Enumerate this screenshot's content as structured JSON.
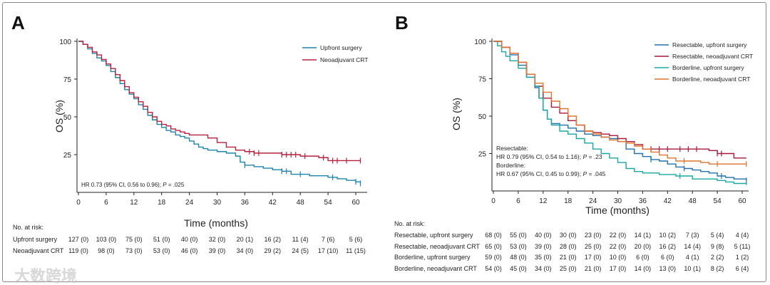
{
  "chart_data": [
    {
      "panel": "A",
      "type": "line",
      "subtype": "kaplan-meier",
      "xlabel": "Time (months)",
      "ylabel": "OS (%)",
      "xlim": [
        0,
        62
      ],
      "ylim": [
        0,
        100
      ],
      "xticks": [
        0,
        6,
        12,
        18,
        24,
        30,
        36,
        42,
        48,
        54,
        60
      ],
      "yticks": [
        25,
        50,
        75,
        100
      ],
      "legend_position": "top-right",
      "annotation": {
        "pre": "HR 0.73 (95% CI, 0.56 to 0.96); ",
        "p": "P",
        "post": " = .025"
      },
      "series": [
        {
          "name": "Upfront surgery",
          "color": "#1f82aa",
          "points": [
            [
              0,
              100
            ],
            [
              1,
              98
            ],
            [
              2,
              95
            ],
            [
              3,
              92
            ],
            [
              4,
              89
            ],
            [
              5,
              87
            ],
            [
              6,
              84
            ],
            [
              7,
              80
            ],
            [
              8,
              76
            ],
            [
              9,
              72
            ],
            [
              10,
              68
            ],
            [
              11,
              65
            ],
            [
              12,
              62
            ],
            [
              13,
              58
            ],
            [
              14,
              55
            ],
            [
              15,
              51
            ],
            [
              16,
              48
            ],
            [
              17,
              45
            ],
            [
              18,
              43
            ],
            [
              19,
              41
            ],
            [
              20,
              40
            ],
            [
              21,
              38
            ],
            [
              22,
              37
            ],
            [
              23,
              36
            ],
            [
              24,
              34
            ],
            [
              25,
              32
            ],
            [
              26,
              30
            ],
            [
              27,
              29
            ],
            [
              28,
              28
            ],
            [
              30,
              27
            ],
            [
              32,
              26
            ],
            [
              34,
              24
            ],
            [
              35,
              20
            ],
            [
              36,
              18
            ],
            [
              38,
              17
            ],
            [
              40,
              16
            ],
            [
              42,
              15
            ],
            [
              44,
              14
            ],
            [
              46,
              12
            ],
            [
              48,
              12
            ],
            [
              50,
              11
            ],
            [
              52,
              11
            ],
            [
              54,
              10
            ],
            [
              56,
              9
            ],
            [
              58,
              8
            ],
            [
              60,
              7
            ],
            [
              61,
              6
            ]
          ],
          "censored": [
            36,
            44,
            45,
            48,
            55,
            60,
            61
          ]
        },
        {
          "name": "Neoadjuvant CRT",
          "color": "#b5213e",
          "points": [
            [
              0,
              100
            ],
            [
              1,
              98
            ],
            [
              2,
              96
            ],
            [
              3,
              93
            ],
            [
              4,
              91
            ],
            [
              5,
              88
            ],
            [
              6,
              85
            ],
            [
              7,
              82
            ],
            [
              8,
              78
            ],
            [
              9,
              74
            ],
            [
              10,
              70
            ],
            [
              11,
              66
            ],
            [
              12,
              63
            ],
            [
              13,
              60
            ],
            [
              14,
              57
            ],
            [
              15,
              53
            ],
            [
              16,
              50
            ],
            [
              17,
              47
            ],
            [
              18,
              45
            ],
            [
              19,
              44
            ],
            [
              20,
              42
            ],
            [
              21,
              41
            ],
            [
              22,
              40
            ],
            [
              23,
              39
            ],
            [
              24,
              38
            ],
            [
              26,
              38
            ],
            [
              28,
              36
            ],
            [
              30,
              33
            ],
            [
              32,
              30
            ],
            [
              34,
              28
            ],
            [
              36,
              27
            ],
            [
              38,
              26
            ],
            [
              40,
              26
            ],
            [
              42,
              26
            ],
            [
              44,
              25
            ],
            [
              46,
              25
            ],
            [
              48,
              24
            ],
            [
              50,
              24
            ],
            [
              52,
              23
            ],
            [
              54,
              21
            ],
            [
              61,
              21
            ]
          ],
          "censored": [
            37,
            38,
            39,
            44,
            45,
            46,
            47,
            49,
            53,
            55,
            56,
            58,
            61
          ]
        }
      ],
      "at_risk": {
        "title": "No. at risk:",
        "rows": [
          {
            "label": "Upfront surgery",
            "values": [
              "127 (0)",
              "103 (0)",
              "75 (0)",
              "51 (0)",
              "40 (0)",
              "32 (0)",
              "20 (1)",
              "16 (2)",
              "11 (4)",
              "7 (6)",
              "5 (6)"
            ]
          },
          {
            "label": "Neoadjuvant CRT",
            "values": [
              "119 (0)",
              "98 (0)",
              "73 (0)",
              "53 (0)",
              "46 (0)",
              "39 (0)",
              "34 (0)",
              "29 (2)",
              "24 (5)",
              "17 (10)",
              "11 (15)"
            ]
          }
        ]
      }
    },
    {
      "panel": "B",
      "type": "line",
      "subtype": "kaplan-meier",
      "xlabel": "Time (months)",
      "ylabel": "OS (%)",
      "xlim": [
        0,
        62
      ],
      "ylim": [
        0,
        100
      ],
      "xticks": [
        0,
        6,
        12,
        18,
        24,
        30,
        36,
        42,
        48,
        54,
        60
      ],
      "yticks": [
        25,
        50,
        75,
        100
      ],
      "legend_position": "top-right",
      "annotation_lines": [
        {
          "pre": "Resectable:",
          "p": "",
          "post": ""
        },
        {
          "pre": "HR 0.79 (95% CI, 0.54 to 1.16); ",
          "p": "P",
          "post": " = .23"
        },
        {
          "pre": "Borderline:",
          "p": "",
          "post": ""
        },
        {
          "pre": "HR 0.67 (95% CI, 0.45 to 0.99); ",
          "p": "P",
          "post": " = .045"
        }
      ],
      "series": [
        {
          "name": "Resectable, upfront surgery",
          "color": "#2271ad",
          "points": [
            [
              0,
              100
            ],
            [
              2,
              96
            ],
            [
              4,
              91
            ],
            [
              6,
              84
            ],
            [
              8,
              76
            ],
            [
              10,
              69
            ],
            [
              11,
              62
            ],
            [
              12,
              54
            ],
            [
              13,
              48
            ],
            [
              14,
              45
            ],
            [
              16,
              44
            ],
            [
              18,
              42
            ],
            [
              20,
              40
            ],
            [
              22,
              38
            ],
            [
              24,
              37
            ],
            [
              26,
              36
            ],
            [
              28,
              35
            ],
            [
              30,
              33
            ],
            [
              32,
              28
            ],
            [
              34,
              25
            ],
            [
              36,
              23
            ],
            [
              38,
              21
            ],
            [
              40,
              20
            ],
            [
              42,
              18
            ],
            [
              44,
              16
            ],
            [
              46,
              15
            ],
            [
              48,
              14
            ],
            [
              50,
              13
            ],
            [
              52,
              12
            ],
            [
              54,
              10
            ],
            [
              56,
              9
            ],
            [
              58,
              8
            ],
            [
              61,
              7
            ]
          ],
          "censored": [
            38,
            46,
            55,
            61
          ]
        },
        {
          "name": "Resectable, neoadjuvant CRT",
          "color": "#a8193a",
          "points": [
            [
              0,
              100
            ],
            [
              2,
              96
            ],
            [
              4,
              92
            ],
            [
              6,
              86
            ],
            [
              8,
              78
            ],
            [
              10,
              70
            ],
            [
              12,
              62
            ],
            [
              14,
              56
            ],
            [
              16,
              52
            ],
            [
              18,
              47
            ],
            [
              20,
              44
            ],
            [
              22,
              40
            ],
            [
              24,
              39
            ],
            [
              26,
              38
            ],
            [
              28,
              37
            ],
            [
              30,
              35
            ],
            [
              32,
              33
            ],
            [
              34,
              31
            ],
            [
              36,
              28
            ],
            [
              40,
              28
            ],
            [
              44,
              28
            ],
            [
              48,
              28
            ],
            [
              52,
              27
            ],
            [
              54,
              25
            ],
            [
              56,
              25
            ],
            [
              58,
              22
            ],
            [
              61,
              22
            ]
          ],
          "censored": [
            38,
            40,
            42,
            45,
            47,
            49,
            54,
            55
          ]
        },
        {
          "name": "Borderline, upfront surgery",
          "color": "#1aa8a2",
          "points": [
            [
              0,
              100
            ],
            [
              1,
              97
            ],
            [
              2,
              93
            ],
            [
              3,
              90
            ],
            [
              4,
              87
            ],
            [
              6,
              82
            ],
            [
              8,
              76
            ],
            [
              10,
              70
            ],
            [
              11,
              62
            ],
            [
              12,
              54
            ],
            [
              13,
              48
            ],
            [
              14,
              44
            ],
            [
              16,
              40
            ],
            [
              18,
              38
            ],
            [
              20,
              35
            ],
            [
              22,
              32
            ],
            [
              24,
              28
            ],
            [
              26,
              25
            ],
            [
              28,
              22
            ],
            [
              30,
              19
            ],
            [
              32,
              15
            ],
            [
              34,
              13
            ],
            [
              36,
              12
            ],
            [
              40,
              11
            ],
            [
              44,
              10
            ],
            [
              46,
              10
            ],
            [
              48,
              8
            ],
            [
              50,
              8
            ],
            [
              54,
              7
            ],
            [
              56,
              6
            ],
            [
              58,
              5
            ],
            [
              61,
              4
            ]
          ],
          "censored": [
            45
          ]
        },
        {
          "name": "Borderline, neoadjuvant CRT",
          "color": "#e0732e",
          "points": [
            [
              0,
              100
            ],
            [
              2,
              96
            ],
            [
              4,
              92
            ],
            [
              6,
              86
            ],
            [
              8,
              78
            ],
            [
              10,
              72
            ],
            [
              12,
              66
            ],
            [
              14,
              60
            ],
            [
              16,
              55
            ],
            [
              18,
              50
            ],
            [
              20,
              44
            ],
            [
              22,
              40
            ],
            [
              24,
              38
            ],
            [
              26,
              36
            ],
            [
              28,
              34
            ],
            [
              30,
              33
            ],
            [
              32,
              32
            ],
            [
              34,
              30
            ],
            [
              36,
              28
            ],
            [
              38,
              26
            ],
            [
              40,
              24
            ],
            [
              42,
              22
            ],
            [
              44,
              20
            ],
            [
              46,
              20
            ],
            [
              48,
              20
            ],
            [
              50,
              19
            ],
            [
              52,
              18
            ],
            [
              61,
              18
            ]
          ],
          "censored": [
            46,
            54,
            61
          ]
        }
      ],
      "at_risk": {
        "title": "No. at risk:",
        "rows": [
          {
            "label": "Resectable, upfront surgery",
            "values": [
              "68 (0)",
              "55 (0)",
              "40 (0)",
              "30 (0)",
              "23 (0)",
              "22 (0)",
              "14 (1)",
              "10 (2)",
              "7 (3)",
              "5 (4)",
              "4 (4)"
            ]
          },
          {
            "label": "Resectable, neoadjuvant CRT",
            "values": [
              "65 (0)",
              "53 (0)",
              "39 (0)",
              "28 (0)",
              "25 (0)",
              "22 (0)",
              "20 (0)",
              "16 (2)",
              "14 (4)",
              "9 (8)",
              "5 (11)"
            ]
          },
          {
            "label": "Borderline, upfront surgery",
            "values": [
              "59 (0)",
              "48 (0)",
              "35 (0)",
              "21 (0)",
              "17 (0)",
              "10 (0)",
              "6 (0)",
              "6 (0)",
              "4 (1)",
              "2 (2)",
              "1 (2)"
            ]
          },
          {
            "label": "Borderline, neoadjuvant CRT",
            "values": [
              "54 (0)",
              "45 (0)",
              "34 (0)",
              "25 (0)",
              "21 (0)",
              "17 (0)",
              "14 (0)",
              "13 (0)",
              "10 (1)",
              "8 (2)",
              "6 (4)"
            ]
          }
        ]
      }
    }
  ],
  "panel_labels": [
    "A",
    "B"
  ],
  "watermark": "大数跨境"
}
